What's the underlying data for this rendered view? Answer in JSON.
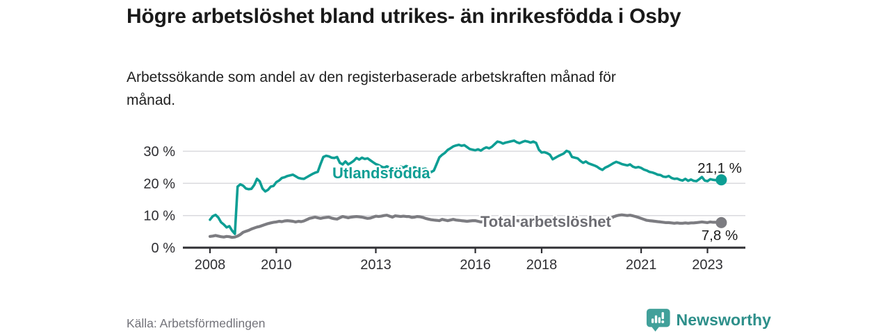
{
  "chart_data": {
    "type": "line",
    "title": "Högre arbetslöshet bland utrikes- än inrikesfödda i Osby",
    "subtitle": "Arbetssökande som andel av den registerbaserade arbetskraften månad för månad.",
    "x_start_year": 2008,
    "x_step_months": 1,
    "x_end_year": 2023.42,
    "xlim": [
      2007.2,
      2024.1
    ],
    "ylim": [
      0,
      35
    ],
    "grid": "horizontal",
    "legend_position": "inline-labels",
    "x_ticks": [
      2008,
      2010,
      2013,
      2016,
      2018,
      2021,
      2023
    ],
    "x_tick_labels": [
      "2008",
      "2010",
      "2013",
      "2016",
      "2018",
      "2021",
      "2023"
    ],
    "y_ticks": [
      0,
      10,
      20,
      30
    ],
    "y_tick_labels": [
      "0 %",
      "10 %",
      "20 %",
      "30 %"
    ],
    "series": [
      {
        "name": "Utlandsfödda",
        "color": "#0d9e94",
        "label_color": "#0d9e94",
        "end_value": 21.1,
        "end_label": "21,1 %",
        "values": [
          8.7,
          9.8,
          10.2,
          9.4,
          7.9,
          7.2,
          6.3,
          6.7,
          5.3,
          4.3,
          19.0,
          19.7,
          19.3,
          18.4,
          18.2,
          18.3,
          19.5,
          21.4,
          20.6,
          18.4,
          17.5,
          18.0,
          19.0,
          19.2,
          20.4,
          20.9,
          21.7,
          21.9,
          22.3,
          22.5,
          22.7,
          22.2,
          21.7,
          21.5,
          21.4,
          21.9,
          22.4,
          22.9,
          23.3,
          23.6,
          26.0,
          28.2,
          28.6,
          28.4,
          28.0,
          27.9,
          28.2,
          26.4,
          25.9,
          26.8,
          25.9,
          26.4,
          27.0,
          27.9,
          27.4,
          28.0,
          27.6,
          27.8,
          27.2,
          26.6,
          26.0,
          25.7,
          25.2,
          24.9,
          25.3,
          24.9,
          24.7,
          25.1,
          24.8,
          25.2,
          24.9,
          25.4,
          25.1,
          24.8,
          25.0,
          24.6,
          24.8,
          24.4,
          24.6,
          23.9,
          23.5,
          24.0,
          26.0,
          28.1,
          28.9,
          29.5,
          30.4,
          30.9,
          31.5,
          31.8,
          32.0,
          31.7,
          31.9,
          31.3,
          30.7,
          30.5,
          30.3,
          30.6,
          30.2,
          30.8,
          31.2,
          30.9,
          31.4,
          32.2,
          33.0,
          32.8,
          32.4,
          32.7,
          32.9,
          33.1,
          33.3,
          32.8,
          32.5,
          32.9,
          33.2,
          33.0,
          32.7,
          33.0,
          32.6,
          30.5,
          29.6,
          29.7,
          29.4,
          28.9,
          27.5,
          28.0,
          28.5,
          28.9,
          29.3,
          30.1,
          29.8,
          28.2,
          28.0,
          27.8,
          27.0,
          26.4,
          26.8,
          26.2,
          25.9,
          25.6,
          25.2,
          24.6,
          24.2,
          24.9,
          25.3,
          25.8,
          26.3,
          26.7,
          26.4,
          26.0,
          25.8,
          25.6,
          25.9,
          25.2,
          24.9,
          25.1,
          24.8,
          24.3,
          24.0,
          23.6,
          23.4,
          23.1,
          22.7,
          22.6,
          22.1,
          22.0,
          22.3,
          21.7,
          21.4,
          21.5,
          21.1,
          20.9,
          21.4,
          20.8,
          21.2,
          20.8,
          20.7,
          21.3,
          22.0,
          20.9,
          20.7,
          21.3,
          21.1,
          21.0,
          21.2,
          21.1
        ]
      },
      {
        "name": "Total arbetslöshet",
        "color": "#7c7c81",
        "label_color": "#6c6c72",
        "end_value": 7.8,
        "end_label": "7,8 %",
        "values": [
          3.5,
          3.6,
          3.8,
          3.6,
          3.4,
          3.3,
          3.5,
          3.4,
          3.2,
          3.3,
          3.6,
          4.1,
          4.8,
          5.1,
          5.4,
          5.8,
          6.1,
          6.4,
          6.6,
          6.9,
          7.2,
          7.5,
          7.7,
          7.9,
          8.0,
          8.2,
          8.1,
          8.3,
          8.4,
          8.3,
          8.2,
          8.0,
          8.2,
          8.1,
          8.3,
          8.7,
          9.1,
          9.3,
          9.5,
          9.3,
          9.1,
          9.3,
          9.4,
          9.5,
          9.2,
          9.0,
          8.9,
          9.3,
          9.7,
          9.5,
          9.3,
          9.5,
          9.6,
          9.7,
          9.6,
          9.5,
          9.3,
          9.1,
          9.2,
          9.5,
          9.8,
          9.7,
          9.8,
          10.0,
          10.1,
          9.8,
          9.5,
          9.9,
          9.8,
          9.7,
          9.8,
          9.7,
          9.7,
          9.4,
          9.5,
          9.7,
          9.6,
          9.4,
          9.1,
          8.9,
          8.7,
          8.6,
          8.5,
          8.4,
          8.8,
          8.6,
          8.4,
          8.6,
          8.8,
          8.6,
          8.5,
          8.4,
          8.3,
          8.2,
          8.3,
          8.4,
          8.4,
          8.2,
          8.0,
          8.1,
          8.3,
          8.2,
          8.2,
          8.3,
          8.4,
          8.3,
          8.4,
          8.5,
          8.5,
          8.4,
          8.5,
          8.4,
          8.3,
          8.4,
          8.3,
          8.2,
          8.1,
          8.2,
          8.1,
          8.0,
          8.0,
          7.9,
          7.8,
          7.9,
          7.8,
          7.7,
          7.8,
          7.9,
          7.8,
          7.9,
          7.8,
          7.9,
          8.0,
          8.1,
          8.0,
          8.1,
          8.2,
          8.1,
          8.2,
          8.3,
          8.4,
          8.5,
          8.6,
          8.7,
          8.8,
          9.1,
          9.6,
          9.9,
          10.1,
          10.2,
          10.1,
          10.0,
          10.1,
          9.9,
          9.7,
          9.4,
          9.1,
          8.8,
          8.5,
          8.4,
          8.3,
          8.2,
          8.1,
          8.0,
          7.9,
          7.8,
          7.8,
          7.7,
          7.6,
          7.7,
          7.6,
          7.6,
          7.7,
          7.6,
          7.7,
          7.7,
          7.8,
          7.9,
          8.0,
          7.9,
          7.8,
          8.0,
          7.9,
          7.9,
          7.9,
          7.8
        ]
      }
    ]
  },
  "colors": {
    "accent_teal": "#0d9e94",
    "series_gray": "#7c7c81",
    "axis": "#2f2f33",
    "grid": "#dadade",
    "brand_teal": "#41a09a",
    "brand_text_teal": "#2d8f8a"
  },
  "footer": {
    "source": "Källa: Arbetsförmedlingen",
    "brand": "Newsworthy"
  }
}
